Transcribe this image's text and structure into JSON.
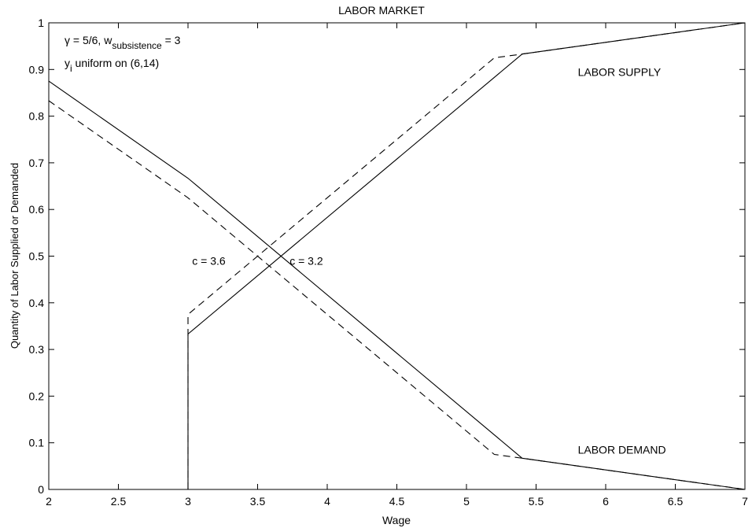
{
  "chart_data": {
    "type": "line",
    "title": "LABOR MARKET",
    "xlabel": "Wage",
    "ylabel": "Quantity of Labor Supplied or Demanded",
    "xlim": [
      2,
      7
    ],
    "ylim": [
      0,
      1
    ],
    "xticks": [
      "2",
      "2.5",
      "3",
      "3.5",
      "4",
      "4.5",
      "5",
      "5.5",
      "6",
      "6.5",
      "7"
    ],
    "yticks": [
      "0",
      "0.1",
      "0.2",
      "0.3",
      "0.4",
      "0.5",
      "0.6",
      "0.7",
      "0.8",
      "0.9",
      "1"
    ],
    "grid": false,
    "series": [
      {
        "style": "solid",
        "color": "#000000",
        "x": [
          2,
          3,
          5.4,
          7
        ],
        "y": [
          0.875,
          0.667,
          0.067,
          0
        ]
      },
      {
        "style": "dashed",
        "color": "#000000",
        "x": [
          2,
          3,
          5.2,
          5.4,
          7
        ],
        "y": [
          0.833,
          0.625,
          0.075,
          0.067,
          0
        ]
      },
      {
        "style": "solid",
        "color": "#000000",
        "x": [
          3,
          3,
          5.4,
          7
        ],
        "y": [
          0,
          0.333,
          0.933,
          1
        ]
      },
      {
        "style": "dashed",
        "color": "#000000",
        "x": [
          3,
          3,
          5.2,
          5.4,
          7
        ],
        "y": [
          0,
          0.375,
          0.925,
          0.933,
          1
        ]
      }
    ],
    "annotations": [
      {
        "text": "LABOR SUPPLY",
        "x": 5.8,
        "y": 0.895
      },
      {
        "text": "LABOR DEMAND",
        "x": 5.8,
        "y": 0.085
      },
      {
        "text": "c = 3.6",
        "x": 3.03,
        "y": 0.49
      },
      {
        "text": "c = 3.2",
        "x": 3.73,
        "y": 0.49
      }
    ],
    "info_lines": {
      "line1_prefix": "γ = 5/6, w",
      "line1_sub": "subsistence",
      "line1_suffix": " = 3",
      "line2_prefix": "y",
      "line2_sub": "i",
      "line2_suffix": " uniform on (6,14)"
    }
  }
}
